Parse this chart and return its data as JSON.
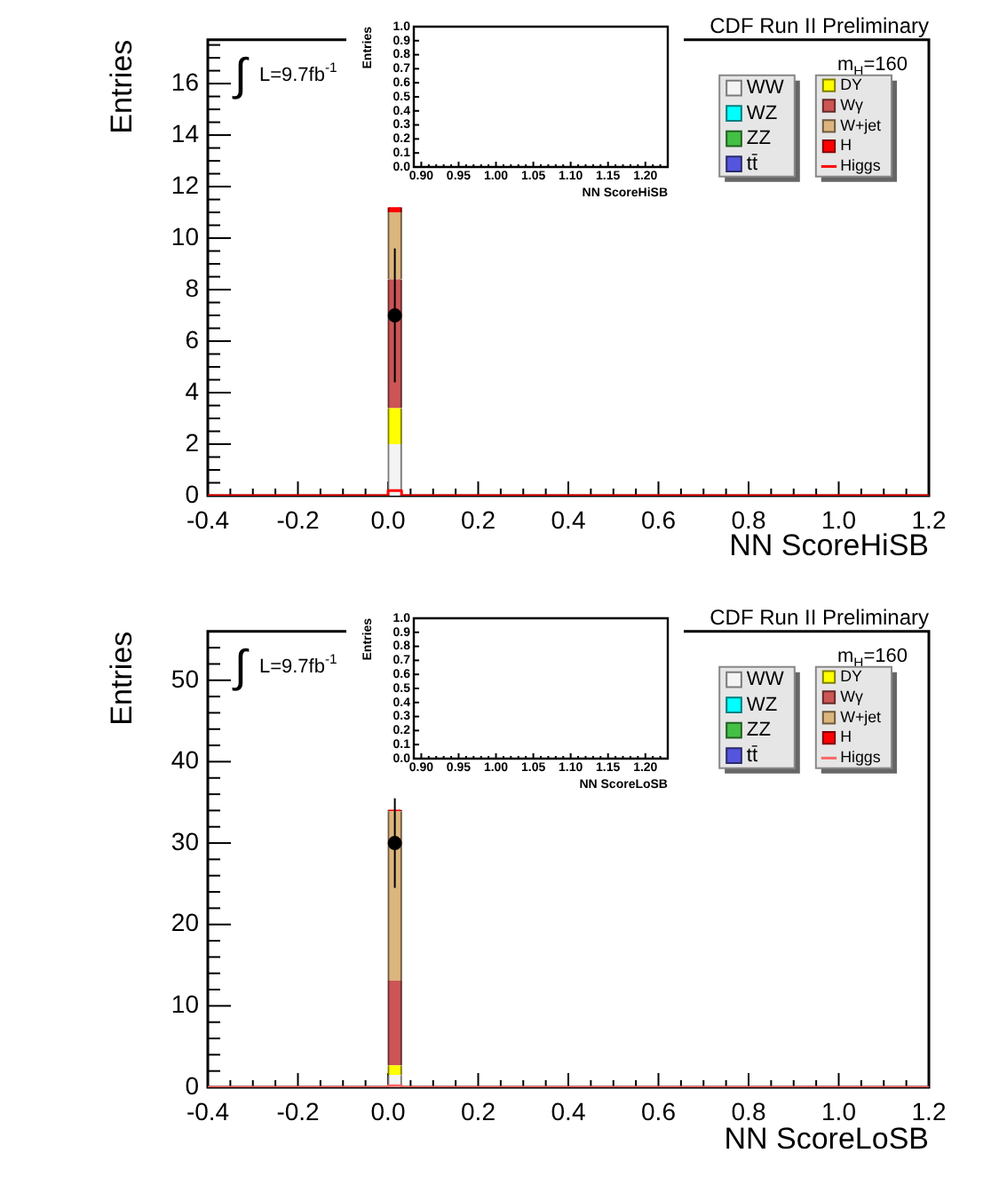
{
  "chart_data": [
    {
      "type": "bar",
      "title": "CDF Run II Preliminary",
      "xlabel": "NN ScoreHiSB",
      "ylabel": "Entries",
      "annotations": [
        "∫ L=9.7fb$^{-1}$",
        "m$_{H}$=160"
      ],
      "x": [
        0.015
      ],
      "stacked": true,
      "legend": "top right",
      "series": [
        {
          "name": "WW",
          "color": "#f4f4f4",
          "values": [
            2.0
          ]
        },
        {
          "name": "WZ",
          "color": "#00ffff",
          "values": [
            0
          ]
        },
        {
          "name": "ZZ",
          "color": "#44c044",
          "values": [
            0
          ]
        },
        {
          "name": "tt̄",
          "color": "#5555dd",
          "values": [
            0
          ]
        },
        {
          "name": "DY",
          "color": "#ffff00",
          "values": [
            1.4
          ]
        },
        {
          "name": "Wγ",
          "color": "#cc5555",
          "values": [
            5.0
          ]
        },
        {
          "name": "W+jet",
          "color": "#dcb57e",
          "values": [
            2.6
          ]
        },
        {
          "name": "H",
          "color": "#ff0000",
          "values": [
            0.2
          ]
        },
        {
          "name": "Higgs",
          "type": "step",
          "color": "#ff0000",
          "x": [
            -0.4,
            0,
            0.03,
            1.2
          ],
          "values": [
            0,
            0.2,
            0,
            0
          ]
        },
        {
          "type": "scatter",
          "color": "#000000",
          "marker": "circle",
          "x": [
            0.015
          ],
          "values": [
            7
          ],
          "errors": [
            2.6
          ]
        }
      ],
      "xlim": [
        -0.4,
        1.2
      ],
      "ylim": [
        0,
        17.7
      ],
      "xticks": [
        -0.4,
        {
          "value": -0.35,
          "label": null
        },
        {
          "value": -0.3,
          "label": null
        },
        {
          "value": -0.25,
          "label": null
        },
        -0.2,
        {
          "value": -0.15,
          "label": null
        },
        {
          "value": -0.1,
          "label": null
        },
        {
          "value": -0.05,
          "label": null
        },
        {
          "value": 0,
          "label": "0.0"
        },
        {
          "value": 0.05,
          "label": null
        },
        {
          "value": 0.1,
          "label": null
        },
        {
          "value": 0.15,
          "label": null
        },
        0.2,
        {
          "value": 0.25,
          "label": null
        },
        {
          "value": 0.3,
          "label": null
        },
        {
          "value": 0.35,
          "label": null
        },
        0.4,
        {
          "value": 0.45,
          "label": null
        },
        {
          "value": 0.5,
          "label": null
        },
        {
          "value": 0.55,
          "label": null
        },
        0.6,
        {
          "value": 0.65,
          "label": null
        },
        {
          "value": 0.7,
          "label": null
        },
        {
          "value": 0.75,
          "label": null
        },
        0.8,
        {
          "value": 0.85,
          "label": null
        },
        {
          "value": 0.9,
          "label": null
        },
        {
          "value": 0.95,
          "label": null
        },
        {
          "value": 1,
          "label": "1.0"
        },
        {
          "value": 1.05,
          "label": null
        },
        {
          "value": 1.1,
          "label": null
        },
        {
          "value": 1.15,
          "label": null
        },
        1.2
      ],
      "yticks": [
        0,
        {
          "value": 0.5,
          "label": null
        },
        {
          "value": 1,
          "label": null
        },
        {
          "value": 1.5,
          "label": null
        },
        2,
        {
          "value": 2.5,
          "label": null
        },
        {
          "value": 3,
          "label": null
        },
        {
          "value": 3.5,
          "label": null
        },
        4,
        {
          "value": 4.5,
          "label": null
        },
        {
          "value": 5,
          "label": null
        },
        {
          "value": 5.5,
          "label": null
        },
        6,
        {
          "value": 6.5,
          "label": null
        },
        {
          "value": 7,
          "label": null
        },
        {
          "value": 7.5,
          "label": null
        },
        8,
        {
          "value": 8.5,
          "label": null
        },
        {
          "value": 9,
          "label": null
        },
        {
          "value": 9.5,
          "label": null
        },
        10,
        {
          "value": 10.5,
          "label": null
        },
        {
          "value": 11,
          "label": null
        },
        {
          "value": 11.5,
          "label": null
        },
        12,
        {
          "value": 12.5,
          "label": null
        },
        {
          "value": 13,
          "label": null
        },
        {
          "value": 13.5,
          "label": null
        },
        14,
        {
          "value": 14.5,
          "label": null
        },
        {
          "value": 15,
          "label": null
        },
        {
          "value": 15.5,
          "label": null
        },
        16,
        {
          "value": 16.5,
          "label": null
        },
        {
          "value": 17,
          "label": null
        },
        {
          "value": 17.5,
          "label": null
        }
      ]
    },
    {
      "type": "histogram",
      "xlabel": "NN ScoreHiSB",
      "ylabel": "Entries",
      "xlim": [
        0.89,
        1.23
      ],
      "ylim": [
        0,
        1
      ],
      "xticks": [
        {
          "value": 0.89,
          "label": null
        },
        {
          "value": 0.9,
          "label": "0.90"
        },
        {
          "value": 0.91,
          "label": null
        },
        {
          "value": 0.92,
          "label": null
        },
        {
          "value": 0.93,
          "label": null
        },
        {
          "value": 0.94,
          "label": null
        },
        {
          "value": 0.95,
          "label": "0.95"
        },
        {
          "value": 0.96,
          "label": null
        },
        {
          "value": 0.97,
          "label": null
        },
        {
          "value": 0.98,
          "label": null
        },
        {
          "value": 0.99,
          "label": null
        },
        {
          "value": 1,
          "label": "1.00"
        },
        {
          "value": 1.01,
          "label": null
        },
        {
          "value": 1.02,
          "label": null
        },
        {
          "value": 1.03,
          "label": null
        },
        {
          "value": 1.04,
          "label": null
        },
        {
          "value": 1.05,
          "label": "1.05"
        },
        {
          "value": 1.06,
          "label": null
        },
        {
          "value": 1.07,
          "label": null
        },
        {
          "value": 1.08,
          "label": null
        },
        {
          "value": 1.09,
          "label": null
        },
        {
          "value": 1.1,
          "label": "1.10"
        },
        {
          "value": 1.11,
          "label": null
        },
        {
          "value": 1.12,
          "label": null
        },
        {
          "value": 1.13,
          "label": null
        },
        {
          "value": 1.14,
          "label": null
        },
        {
          "value": 1.15,
          "label": "1.15"
        },
        {
          "value": 1.16,
          "label": null
        },
        {
          "value": 1.17,
          "label": null
        },
        {
          "value": 1.18,
          "label": null
        },
        {
          "value": 1.19,
          "label": null
        },
        {
          "value": 1.2,
          "label": "1.20"
        },
        {
          "value": 1.21,
          "label": null
        },
        {
          "value": 1.22,
          "label": null
        }
      ],
      "yticks": [
        {
          "value": 0,
          "label": "0.0"
        },
        0.1,
        0.2,
        0.3,
        0.4,
        0.5,
        0.6,
        0.7,
        0.8,
        0.9,
        {
          "value": 1,
          "label": "1.0"
        }
      ]
    },
    {
      "type": "bar",
      "title": "CDF Run II Preliminary",
      "xlabel": "NN ScoreLoSB",
      "ylabel": "Entries",
      "annotations": [
        "∫ L=9.7fb$^{-1}$",
        "m$_{H}$=160"
      ],
      "x": [
        0.015
      ],
      "stacked": true,
      "legend": "top right",
      "series": [
        {
          "name": "WW",
          "color": "#f4f4f4",
          "values": [
            1.5
          ]
        },
        {
          "name": "WZ",
          "color": "#00ffff",
          "values": [
            0
          ]
        },
        {
          "name": "ZZ",
          "color": "#44c044",
          "values": [
            0
          ]
        },
        {
          "name": "tt̄",
          "color": "#5555dd",
          "values": [
            0
          ]
        },
        {
          "name": "DY",
          "color": "#ffff00",
          "values": [
            1.2
          ]
        },
        {
          "name": "Wγ",
          "color": "#cc5555",
          "values": [
            10.4
          ]
        },
        {
          "name": "W+jet",
          "color": "#dcb57e",
          "values": [
            20.8
          ]
        },
        {
          "name": "H",
          "color": "#ff0000",
          "values": [
            0.2
          ]
        },
        {
          "name": "Higgs",
          "type": "step",
          "color": "#ff6666",
          "x": [
            -0.4,
            0,
            0.03,
            1.2
          ],
          "values": [
            0,
            0.2,
            0,
            0
          ]
        },
        {
          "type": "scatter",
          "color": "#000000",
          "marker": "circle",
          "x": [
            0.015
          ],
          "values": [
            30
          ],
          "errors": [
            5.5
          ]
        }
      ],
      "xlim": [
        -0.4,
        1.2
      ],
      "ylim": [
        0,
        56
      ],
      "xticks": [
        -0.4,
        {
          "value": -0.35,
          "label": null
        },
        {
          "value": -0.3,
          "label": null
        },
        {
          "value": -0.25,
          "label": null
        },
        -0.2,
        {
          "value": -0.15,
          "label": null
        },
        {
          "value": -0.1,
          "label": null
        },
        {
          "value": -0.05,
          "label": null
        },
        {
          "value": 0,
          "label": "0.0"
        },
        {
          "value": 0.05,
          "label": null
        },
        {
          "value": 0.1,
          "label": null
        },
        {
          "value": 0.15,
          "label": null
        },
        0.2,
        {
          "value": 0.25,
          "label": null
        },
        {
          "value": 0.3,
          "label": null
        },
        {
          "value": 0.35,
          "label": null
        },
        0.4,
        {
          "value": 0.45,
          "label": null
        },
        {
          "value": 0.5,
          "label": null
        },
        {
          "value": 0.55,
          "label": null
        },
        0.6,
        {
          "value": 0.65,
          "label": null
        },
        {
          "value": 0.7,
          "label": null
        },
        {
          "value": 0.75,
          "label": null
        },
        0.8,
        {
          "value": 0.85,
          "label": null
        },
        {
          "value": 0.9,
          "label": null
        },
        {
          "value": 0.95,
          "label": null
        },
        {
          "value": 1,
          "label": "1.0"
        },
        {
          "value": 1.05,
          "label": null
        },
        {
          "value": 1.1,
          "label": null
        },
        {
          "value": 1.15,
          "label": null
        },
        1.2
      ],
      "yticks": [
        0,
        {
          "value": 2,
          "label": null
        },
        {
          "value": 4,
          "label": null
        },
        {
          "value": 6,
          "label": null
        },
        {
          "value": 8,
          "label": null
        },
        10,
        {
          "value": 12,
          "label": null
        },
        {
          "value": 14,
          "label": null
        },
        {
          "value": 16,
          "label": null
        },
        {
          "value": 18,
          "label": null
        },
        20,
        {
          "value": 22,
          "label": null
        },
        {
          "value": 24,
          "label": null
        },
        {
          "value": 26,
          "label": null
        },
        {
          "value": 28,
          "label": null
        },
        30,
        {
          "value": 32,
          "label": null
        },
        {
          "value": 34,
          "label": null
        },
        {
          "value": 36,
          "label": null
        },
        {
          "value": 38,
          "label": null
        },
        40,
        {
          "value": 42,
          "label": null
        },
        {
          "value": 44,
          "label": null
        },
        {
          "value": 46,
          "label": null
        },
        {
          "value": 48,
          "label": null
        },
        50,
        {
          "value": 52,
          "label": null
        },
        {
          "value": 54,
          "label": null
        }
      ]
    },
    {
      "type": "histogram",
      "xlabel": "NN ScoreLoSB",
      "ylabel": "Entries",
      "xlim": [
        0.89,
        1.23
      ],
      "ylim": [
        0,
        1
      ],
      "xticks": [
        {
          "value": 0.89,
          "label": null
        },
        {
          "value": 0.9,
          "label": "0.90"
        },
        {
          "value": 0.91,
          "label": null
        },
        {
          "value": 0.92,
          "label": null
        },
        {
          "value": 0.93,
          "label": null
        },
        {
          "value": 0.94,
          "label": null
        },
        {
          "value": 0.95,
          "label": "0.95"
        },
        {
          "value": 0.96,
          "label": null
        },
        {
          "value": 0.97,
          "label": null
        },
        {
          "value": 0.98,
          "label": null
        },
        {
          "value": 0.99,
          "label": null
        },
        {
          "value": 1,
          "label": "1.00"
        },
        {
          "value": 1.01,
          "label": null
        },
        {
          "value": 1.02,
          "label": null
        },
        {
          "value": 1.03,
          "label": null
        },
        {
          "value": 1.04,
          "label": null
        },
        {
          "value": 1.05,
          "label": "1.05"
        },
        {
          "value": 1.06,
          "label": null
        },
        {
          "value": 1.07,
          "label": null
        },
        {
          "value": 1.08,
          "label": null
        },
        {
          "value": 1.09,
          "label": null
        },
        {
          "value": 1.1,
          "label": "1.10"
        },
        {
          "value": 1.11,
          "label": null
        },
        {
          "value": 1.12,
          "label": null
        },
        {
          "value": 1.13,
          "label": null
        },
        {
          "value": 1.14,
          "label": null
        },
        {
          "value": 1.15,
          "label": "1.15"
        },
        {
          "value": 1.16,
          "label": null
        },
        {
          "value": 1.17,
          "label": null
        },
        {
          "value": 1.18,
          "label": null
        },
        {
          "value": 1.19,
          "label": null
        },
        {
          "value": 1.2,
          "label": "1.20"
        },
        {
          "value": 1.21,
          "label": null
        },
        {
          "value": 1.22,
          "label": null
        }
      ],
      "yticks": [
        {
          "value": 0,
          "label": "0.0"
        },
        0.1,
        0.2,
        0.3,
        0.4,
        0.5,
        0.6,
        0.7,
        0.8,
        0.9,
        {
          "value": 1,
          "label": "1.0"
        }
      ]
    }
  ]
}
